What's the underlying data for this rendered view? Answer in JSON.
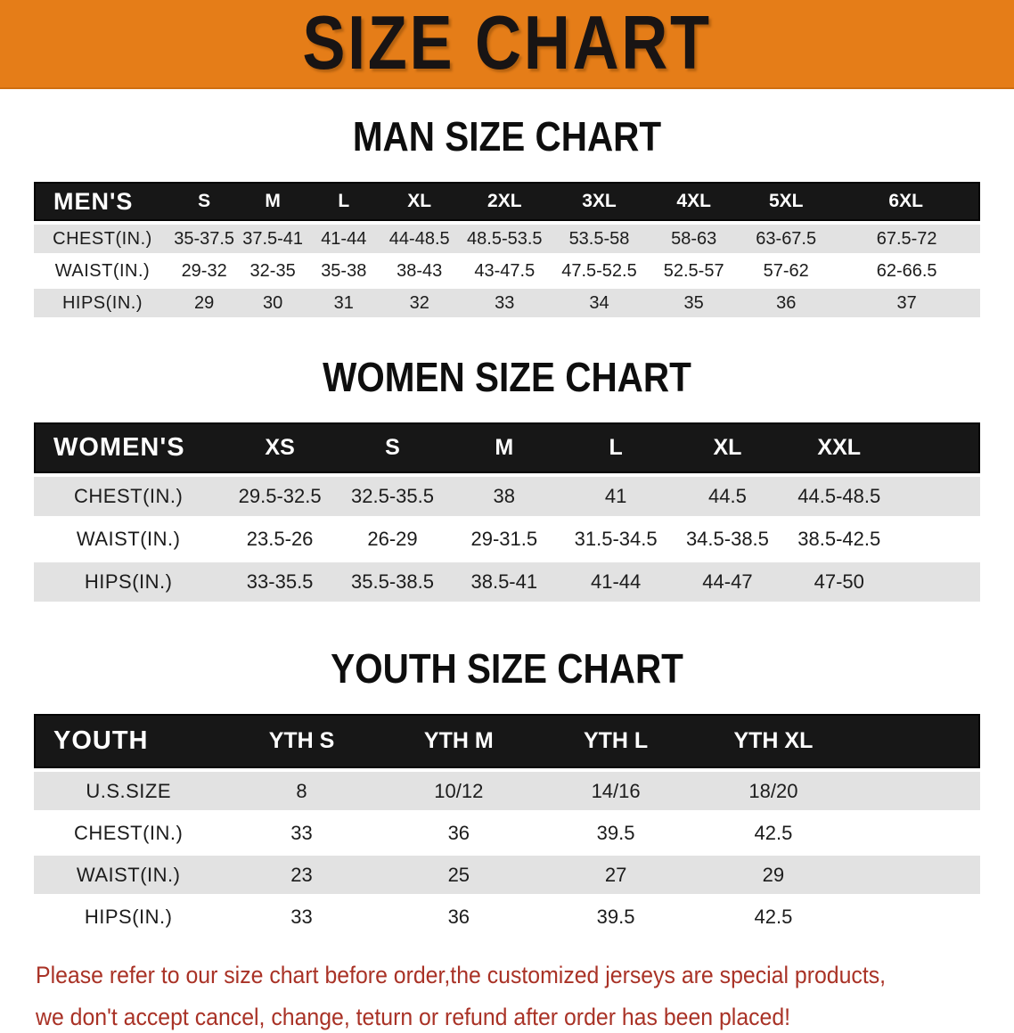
{
  "banner": {
    "title": "SIZE CHART"
  },
  "headings": {
    "men": "MAN SIZE CHART",
    "women": "WOMEN SIZE CHART",
    "youth": "YOUTH SIZE CHART"
  },
  "tables": {
    "men": {
      "header": [
        "MEN'S",
        "S",
        "M",
        "L",
        "XL",
        "2XL",
        "3XL",
        "4XL",
        "5XL",
        "6XL"
      ],
      "rows": [
        {
          "label": "CHEST(IN.)",
          "values": [
            "35-37.5",
            "37.5-41",
            "41-44",
            "44-48.5",
            "48.5-53.5",
            "53.5-58",
            "58-63",
            "63-67.5",
            "67.5-72"
          ]
        },
        {
          "label": "WAIST(IN.)",
          "values": [
            "29-32",
            "32-35",
            "35-38",
            "38-43",
            "43-47.5",
            "47.5-52.5",
            "52.5-57",
            "57-62",
            "62-66.5"
          ]
        },
        {
          "label": "HIPS(IN.)",
          "values": [
            "29",
            "30",
            "31",
            "32",
            "33",
            "34",
            "35",
            "36",
            "37"
          ]
        }
      ]
    },
    "women": {
      "header": [
        "WOMEN'S",
        "XS",
        "S",
        "M",
        "L",
        "XL",
        "XXL"
      ],
      "rows": [
        {
          "label": "CHEST(IN.)",
          "values": [
            "29.5-32.5",
            "32.5-35.5",
            "38",
            "41",
            "44.5",
            "44.5-48.5"
          ]
        },
        {
          "label": "WAIST(IN.)",
          "values": [
            "23.5-26",
            "26-29",
            "29-31.5",
            "31.5-34.5",
            "34.5-38.5",
            "38.5-42.5"
          ]
        },
        {
          "label": "HIPS(IN.)",
          "values": [
            "33-35.5",
            "35.5-38.5",
            "38.5-41",
            "41-44",
            "44-47",
            "47-50"
          ]
        }
      ]
    },
    "youth": {
      "header": [
        "YOUTH",
        "YTH S",
        "YTH M",
        "YTH L",
        "YTH XL"
      ],
      "rows": [
        {
          "label": "U.S.SIZE",
          "values": [
            "8",
            "10/12",
            "14/16",
            "18/20"
          ]
        },
        {
          "label": "CHEST(IN.)",
          "values": [
            "33",
            "36",
            "39.5",
            "42.5"
          ]
        },
        {
          "label": "WAIST(IN.)",
          "values": [
            "23",
            "25",
            "27",
            "29"
          ]
        },
        {
          "label": "HIPS(IN.)",
          "values": [
            "33",
            "36",
            "39.5",
            "42.5"
          ]
        }
      ]
    }
  },
  "note": {
    "line1": "Please refer to our size chart before order,the customized jerseys are special products,",
    "line2": "we don't accept cancel, change, teturn or refund after order has been placed!"
  },
  "colors": {
    "banner_bg": "#e57d18",
    "banner_text": "#181414",
    "header_bar_bg": "#171717",
    "header_bar_text": "#ffffff",
    "shaded_row_bg": "#e2e2e2",
    "note_text": "#a93226"
  }
}
